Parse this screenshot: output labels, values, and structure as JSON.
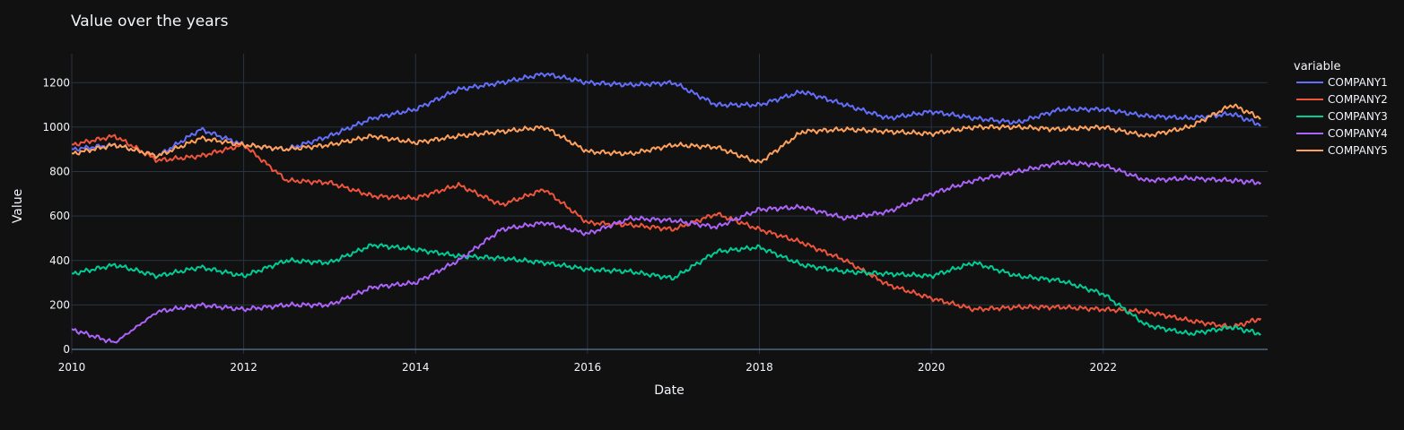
{
  "chart_data": {
    "type": "line",
    "title": "Value over the years",
    "xlabel": "Date",
    "ylabel": "Value",
    "xlim": [
      "2010-01-01",
      "2023-11-30"
    ],
    "ylim": [
      -20,
      1330
    ],
    "x_ticks": [
      "2010",
      "2012",
      "2014",
      "2016",
      "2018",
      "2020",
      "2022"
    ],
    "y_ticks": [
      0,
      200,
      400,
      600,
      800,
      1000,
      1200
    ],
    "grid": true,
    "legend": {
      "title": "variable",
      "placement": "right"
    },
    "x": [
      "2010-01",
      "2010-07",
      "2011-01",
      "2011-07",
      "2012-01",
      "2012-07",
      "2013-01",
      "2013-07",
      "2014-01",
      "2014-07",
      "2015-01",
      "2015-07",
      "2016-01",
      "2016-07",
      "2017-01",
      "2017-07",
      "2018-01",
      "2018-07",
      "2019-01",
      "2019-07",
      "2020-01",
      "2020-07",
      "2021-01",
      "2021-07",
      "2022-01",
      "2022-07",
      "2023-01",
      "2023-07",
      "2023-11"
    ],
    "series": [
      {
        "name": "COMPANY1",
        "color": "#636efa",
        "values": [
          900,
          920,
          870,
          990,
          920,
          900,
          960,
          1040,
          1080,
          1170,
          1200,
          1240,
          1200,
          1190,
          1200,
          1100,
          1100,
          1160,
          1100,
          1040,
          1070,
          1040,
          1020,
          1080,
          1080,
          1050,
          1040,
          1060,
          1010
        ]
      },
      {
        "name": "COMPANY2",
        "color": "#ef553b",
        "values": [
          920,
          960,
          850,
          870,
          920,
          760,
          750,
          690,
          680,
          740,
          650,
          720,
          570,
          560,
          540,
          610,
          540,
          480,
          400,
          290,
          230,
          180,
          190,
          190,
          180,
          170,
          130,
          100,
          140
        ]
      },
      {
        "name": "COMPANY3",
        "color": "#00cc96",
        "values": [
          340,
          380,
          330,
          370,
          330,
          400,
          390,
          470,
          450,
          420,
          410,
          390,
          360,
          350,
          320,
          440,
          460,
          380,
          350,
          340,
          330,
          390,
          330,
          310,
          250,
          110,
          70,
          100,
          70
        ]
      },
      {
        "name": "COMPANY4",
        "color": "#ab63fa",
        "values": [
          90,
          30,
          170,
          200,
          180,
          200,
          200,
          280,
          300,
          400,
          540,
          570,
          520,
          590,
          580,
          550,
          630,
          640,
          590,
          620,
          700,
          760,
          800,
          840,
          830,
          760,
          770,
          760,
          750
        ]
      },
      {
        "name": "COMPANY5",
        "color": "#ffa15a",
        "values": [
          880,
          920,
          870,
          950,
          920,
          900,
          920,
          960,
          930,
          960,
          980,
          1000,
          890,
          880,
          920,
          910,
          840,
          980,
          990,
          980,
          970,
          1000,
          1000,
          990,
          1000,
          960,
          1000,
          1100,
          1040
        ]
      }
    ]
  }
}
